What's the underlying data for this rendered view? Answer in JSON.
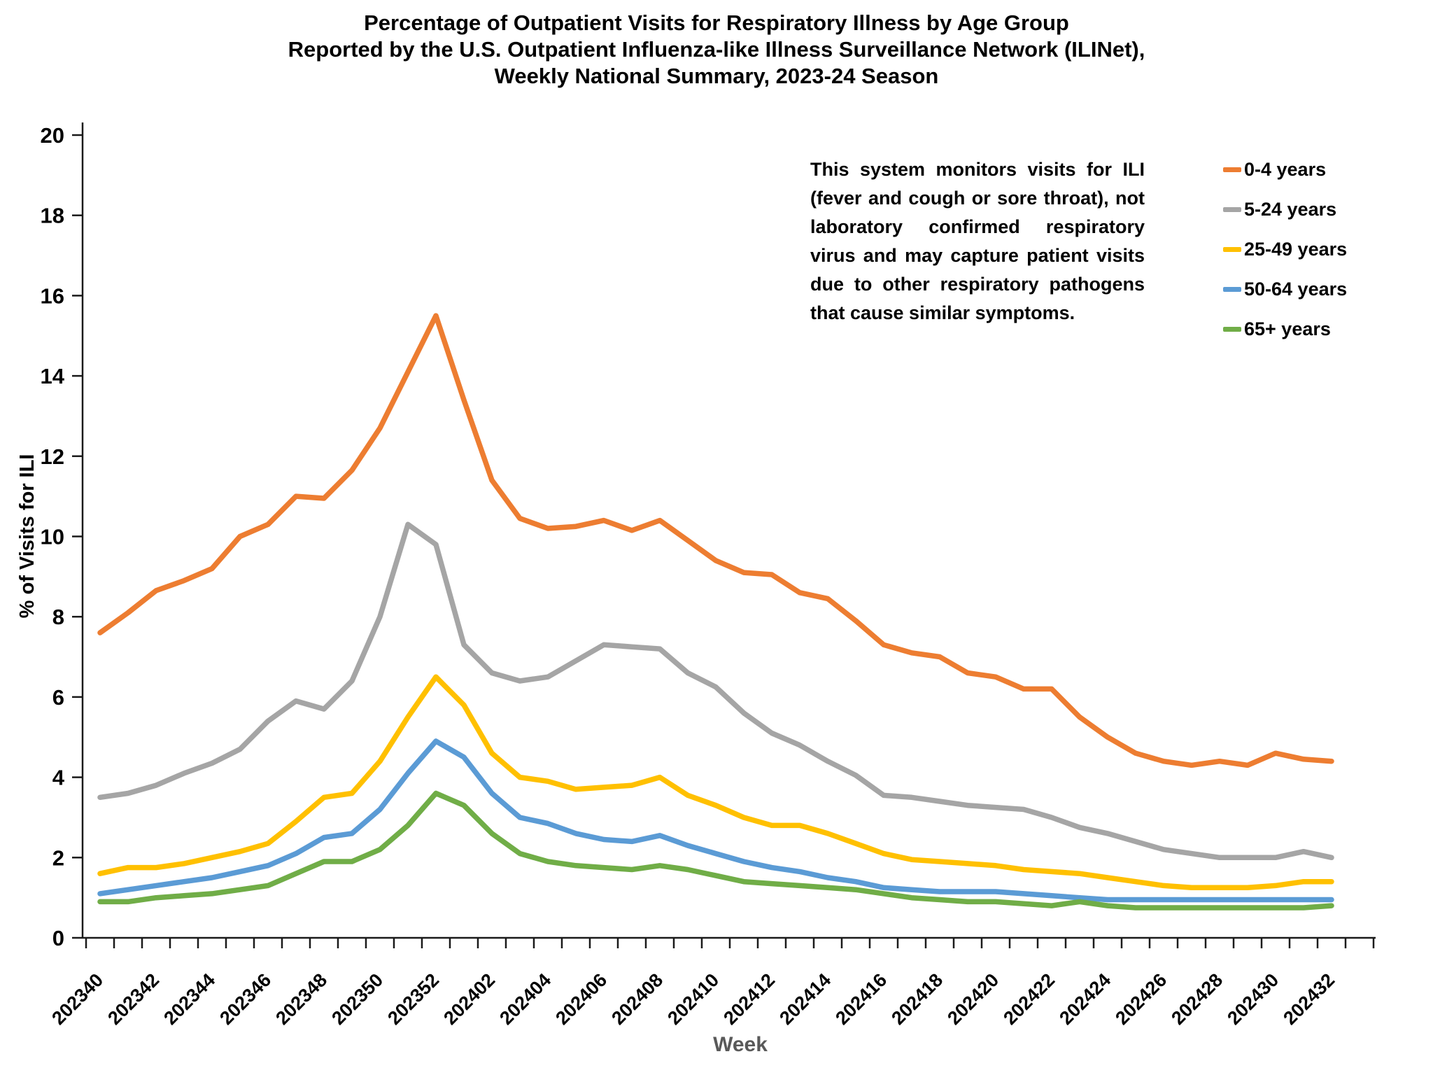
{
  "title": {
    "line1": "Percentage of Outpatient Visits for Respiratory Illness by Age Group",
    "line2": "Reported by the U.S. Outpatient Influenza-like Illness Surveillance Network (ILINet),",
    "line3": "Weekly National Summary, 2023-24 Season"
  },
  "annotation": "This system monitors visits for ILI (fever and cough or sore throat), not laboratory confirmed respiratory virus and may capture patient visits due to other respiratory pathogens that cause similar symptoms.",
  "axes": {
    "y_title": "% of Visits for ILI",
    "x_title": "Week",
    "x_title_color": "#595959",
    "axis_color": "#1a1a1a"
  },
  "chart_data": {
    "type": "line",
    "title": "Percentage of Outpatient Visits for Respiratory Illness by Age Group, ILINet, Weekly National Summary, 2023-24 Season",
    "xlabel": "Week",
    "ylabel": "% of Visits for ILI",
    "ylim": [
      0,
      20
    ],
    "y_tick_step": 2,
    "grid": false,
    "legend_position": "right",
    "x": [
      "202340",
      "202341",
      "202342",
      "202343",
      "202344",
      "202345",
      "202346",
      "202347",
      "202348",
      "202349",
      "202350",
      "202351",
      "202352",
      "202401",
      "202402",
      "202403",
      "202404",
      "202405",
      "202406",
      "202407",
      "202408",
      "202409",
      "202410",
      "202411",
      "202412",
      "202413",
      "202414",
      "202415",
      "202416",
      "202417",
      "202418",
      "202419",
      "202420",
      "202421",
      "202422",
      "202423",
      "202424",
      "202425",
      "202426",
      "202427",
      "202428",
      "202429",
      "202430",
      "202431",
      "202432"
    ],
    "x_tick_labels": [
      "202340",
      "202342",
      "202344",
      "202346",
      "202348",
      "202350",
      "202352",
      "202402",
      "202404",
      "202406",
      "202408",
      "202410",
      "202412",
      "202414",
      "202416",
      "202418",
      "202420",
      "202422",
      "202424",
      "202426",
      "202428",
      "202430",
      "202432"
    ],
    "series": [
      {
        "name": "0-4 years",
        "color": "#ED7D31",
        "values": [
          7.6,
          8.1,
          8.65,
          8.9,
          9.2,
          10.0,
          10.3,
          11.0,
          10.95,
          11.65,
          12.7,
          14.1,
          15.5,
          13.4,
          11.4,
          10.45,
          10.2,
          10.25,
          10.4,
          10.15,
          10.4,
          9.9,
          9.4,
          9.1,
          9.05,
          8.6,
          8.45,
          7.9,
          7.3,
          7.1,
          7.0,
          6.6,
          6.5,
          6.2,
          6.2,
          5.5,
          5.0,
          4.6,
          4.4,
          4.3,
          4.4,
          4.3,
          4.6,
          4.45,
          4.4
        ]
      },
      {
        "name": "5-24 years",
        "color": "#A5A5A5",
        "values": [
          3.5,
          3.6,
          3.8,
          4.1,
          4.35,
          4.7,
          5.4,
          5.9,
          5.7,
          6.4,
          8.0,
          10.3,
          9.8,
          7.3,
          6.6,
          6.4,
          6.5,
          6.9,
          7.3,
          7.25,
          7.2,
          6.6,
          6.25,
          5.6,
          5.1,
          4.8,
          4.4,
          4.05,
          3.55,
          3.5,
          3.4,
          3.3,
          3.25,
          3.2,
          3.0,
          2.75,
          2.6,
          2.4,
          2.2,
          2.1,
          2.0,
          2.0,
          2.0,
          2.15,
          2.0
        ]
      },
      {
        "name": "25-49 years",
        "color": "#FFC000",
        "values": [
          1.6,
          1.75,
          1.75,
          1.85,
          2.0,
          2.15,
          2.35,
          2.9,
          3.5,
          3.6,
          4.4,
          5.5,
          6.5,
          5.8,
          4.6,
          4.0,
          3.9,
          3.7,
          3.75,
          3.8,
          4.0,
          3.55,
          3.3,
          3.0,
          2.8,
          2.8,
          2.6,
          2.35,
          2.1,
          1.95,
          1.9,
          1.85,
          1.8,
          1.7,
          1.65,
          1.6,
          1.5,
          1.4,
          1.3,
          1.25,
          1.25,
          1.25,
          1.3,
          1.4,
          1.4
        ]
      },
      {
        "name": "50-64 years",
        "color": "#5B9BD5",
        "values": [
          1.1,
          1.2,
          1.3,
          1.4,
          1.5,
          1.65,
          1.8,
          2.1,
          2.5,
          2.6,
          3.2,
          4.1,
          4.9,
          4.5,
          3.6,
          3.0,
          2.85,
          2.6,
          2.45,
          2.4,
          2.55,
          2.3,
          2.1,
          1.9,
          1.75,
          1.65,
          1.5,
          1.4,
          1.25,
          1.2,
          1.15,
          1.15,
          1.15,
          1.1,
          1.05,
          1.0,
          0.95,
          0.95,
          0.95,
          0.95,
          0.95,
          0.95,
          0.95,
          0.95,
          0.95
        ]
      },
      {
        "name": "65+ years",
        "color": "#70AD47",
        "values": [
          0.9,
          0.9,
          1.0,
          1.05,
          1.1,
          1.2,
          1.3,
          1.6,
          1.9,
          1.9,
          2.2,
          2.8,
          3.6,
          3.3,
          2.6,
          2.1,
          1.9,
          1.8,
          1.75,
          1.7,
          1.8,
          1.7,
          1.55,
          1.4,
          1.35,
          1.3,
          1.25,
          1.2,
          1.1,
          1.0,
          0.95,
          0.9,
          0.9,
          0.85,
          0.8,
          0.9,
          0.8,
          0.75,
          0.75,
          0.75,
          0.75,
          0.75,
          0.75,
          0.75,
          0.8
        ]
      }
    ]
  }
}
